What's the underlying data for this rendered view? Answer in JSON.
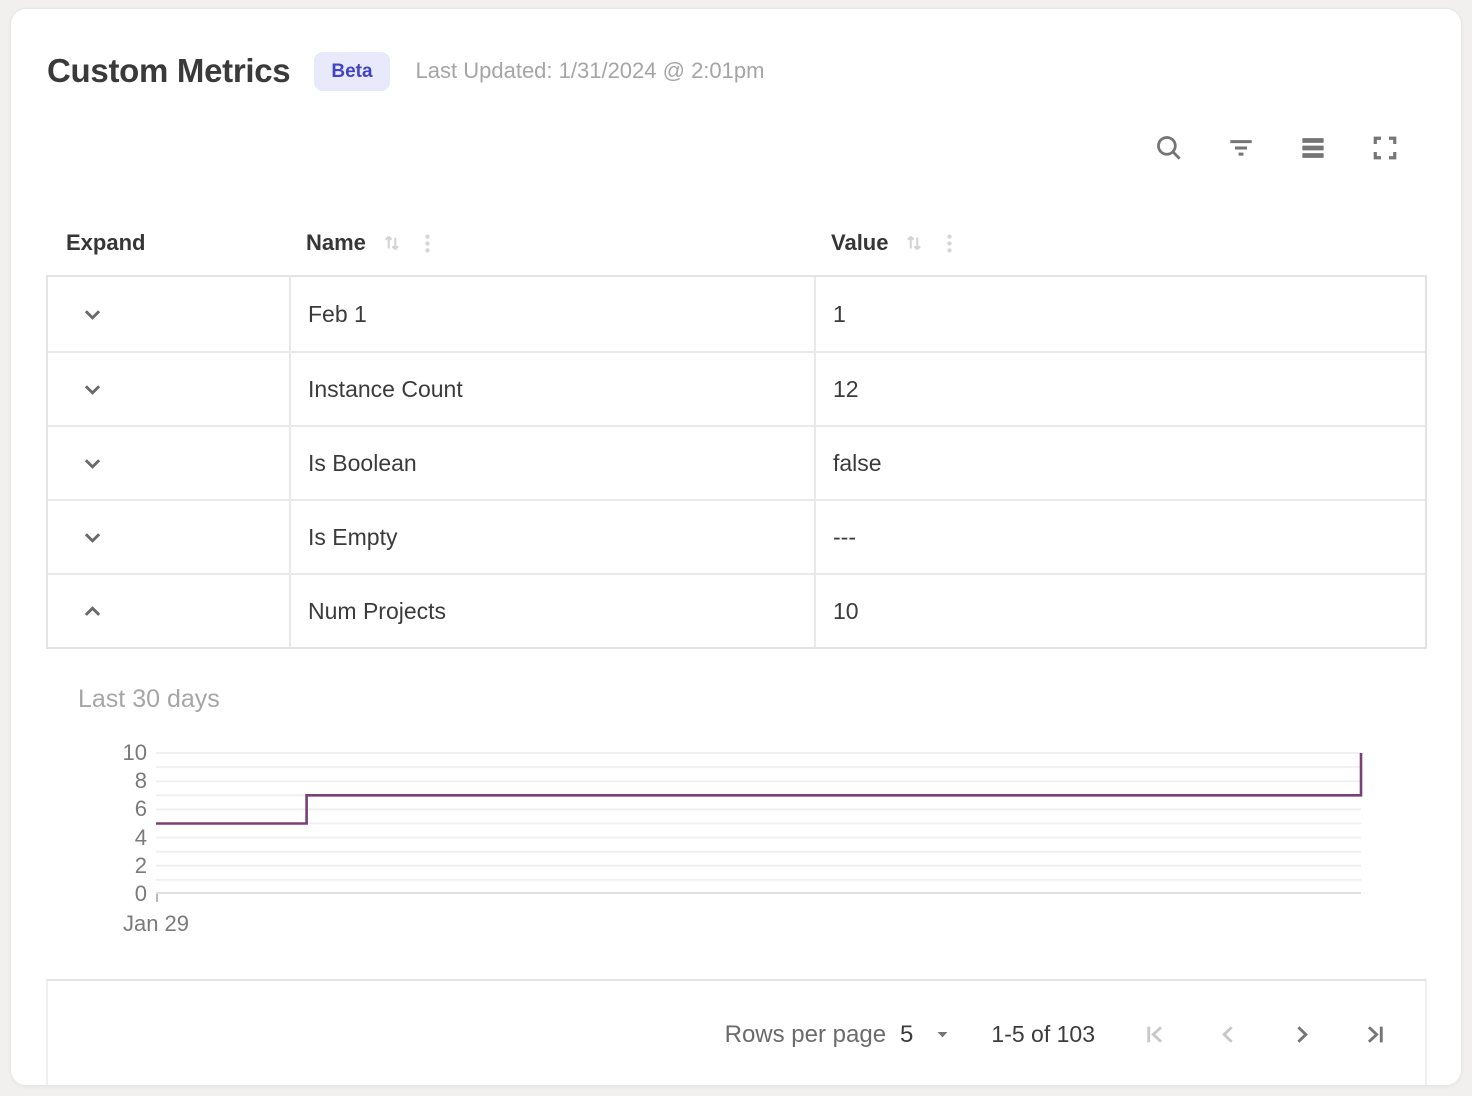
{
  "page": {
    "title": "Custom Metrics",
    "badge": "Beta",
    "last_updated": "Last Updated: 1/31/2024 @ 2:01pm"
  },
  "toolbar": {
    "icons": [
      "search",
      "filter",
      "row-density",
      "fullscreen"
    ]
  },
  "table": {
    "columns": [
      {
        "label": "Expand",
        "sortable": false
      },
      {
        "label": "Name",
        "sortable": true
      },
      {
        "label": "Value",
        "sortable": true
      }
    ],
    "rows": [
      {
        "name": "Feb 1",
        "value": "1",
        "expanded": false
      },
      {
        "name": "Instance Count",
        "value": "12",
        "expanded": false
      },
      {
        "name": "Is Boolean",
        "value": "false",
        "expanded": false
      },
      {
        "name": "Is Empty",
        "value": "---",
        "expanded": false
      },
      {
        "name": "Num Projects",
        "value": "10",
        "expanded": true
      }
    ]
  },
  "chart_data": {
    "type": "line",
    "subtype": "step",
    "title": "Last 30 days",
    "series_name": "Num Projects",
    "ylim": [
      0,
      10
    ],
    "y_tick_labels": [
      0,
      2,
      4,
      6,
      8,
      10
    ],
    "gridline_interval": 1,
    "grid": true,
    "legend": "none",
    "x_tick_labels": [
      "Jan 29"
    ],
    "line_color": "#7b3f78",
    "points": [
      {
        "x_frac": 0,
        "y": 5
      },
      {
        "x_frac": 0.125,
        "y": 5
      },
      {
        "x_frac": 0.125,
        "y": 7
      },
      {
        "x_frac": 1,
        "y": 7
      },
      {
        "x_frac": 1,
        "y": 10
      }
    ]
  },
  "pagination": {
    "rows_per_page_label": "Rows per page",
    "rows_per_page_value": "5",
    "range_label": "1-5 of 103",
    "controls": [
      {
        "name": "first-page",
        "enabled": false
      },
      {
        "name": "previous-page",
        "enabled": false
      },
      {
        "name": "next-page",
        "enabled": true
      },
      {
        "name": "last-page",
        "enabled": true
      }
    ]
  },
  "colors": {
    "badge_bg": "#e8e9fb",
    "badge_text": "#4145c4",
    "chart_line": "#7b3f78",
    "text_primary": "#3a3a3a",
    "text_muted": "#a5a5a5",
    "icon_gray": "#757575",
    "icon_disabled": "#c8c8c8",
    "border": "#e3e3e3"
  }
}
